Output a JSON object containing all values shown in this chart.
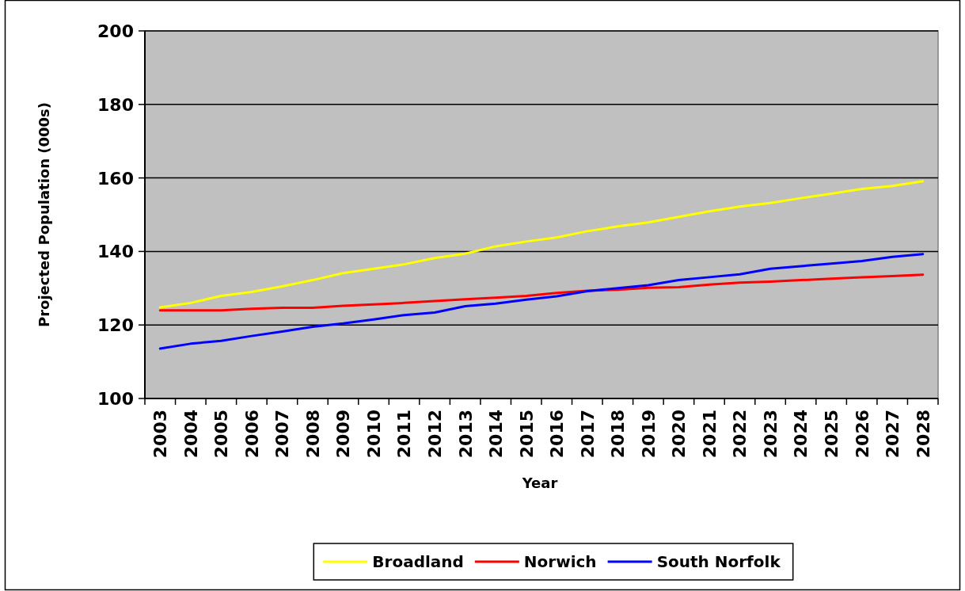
{
  "chart_data": {
    "type": "line",
    "xlabel": "Year",
    "ylabel": "Projected Population (000s)",
    "categories": [
      "2003",
      "2004",
      "2005",
      "2006",
      "2007",
      "2008",
      "2009",
      "2010",
      "2011",
      "2012",
      "2013",
      "2014",
      "2015",
      "2016",
      "2017",
      "2018",
      "2019",
      "2020",
      "2021",
      "2022",
      "2023",
      "2024",
      "2025",
      "2026",
      "2027",
      "2028"
    ],
    "series": [
      {
        "name": "Broadland",
        "color": "#ffff00",
        "values": [
          124.8,
          126.0,
          127.9,
          129.0,
          130.5,
          132.2,
          134.1,
          135.3,
          136.5,
          138.2,
          139.4,
          141.4,
          142.7,
          143.8,
          145.5,
          146.8,
          147.9,
          149.4,
          150.9,
          152.2,
          153.2,
          154.5,
          155.7,
          157.0,
          157.8,
          159.1
        ]
      },
      {
        "name": "Norwich",
        "color": "#ff0000",
        "values": [
          124.0,
          124.0,
          124.0,
          124.4,
          124.7,
          124.7,
          125.2,
          125.6,
          126.0,
          126.5,
          127.0,
          127.4,
          127.9,
          128.7,
          129.3,
          129.6,
          130.1,
          130.3,
          131.0,
          131.5,
          131.8,
          132.2,
          132.6,
          133.0,
          133.3,
          133.7
        ]
      },
      {
        "name": "South Norfolk",
        "color": "#0000ff",
        "values": [
          113.6,
          114.9,
          115.7,
          117.0,
          118.2,
          119.5,
          120.4,
          121.5,
          122.7,
          123.4,
          125.1,
          125.8,
          126.9,
          127.8,
          129.2,
          130.0,
          130.8,
          132.2,
          133.0,
          133.8,
          135.3,
          136.0,
          136.7,
          137.4,
          138.5,
          139.3
        ]
      }
    ],
    "ylim": [
      100,
      200
    ],
    "yticks": [
      100,
      120,
      140,
      160,
      180,
      200
    ],
    "grid": "y",
    "legend": "bottom",
    "marker": "none",
    "line_style": "solid"
  }
}
